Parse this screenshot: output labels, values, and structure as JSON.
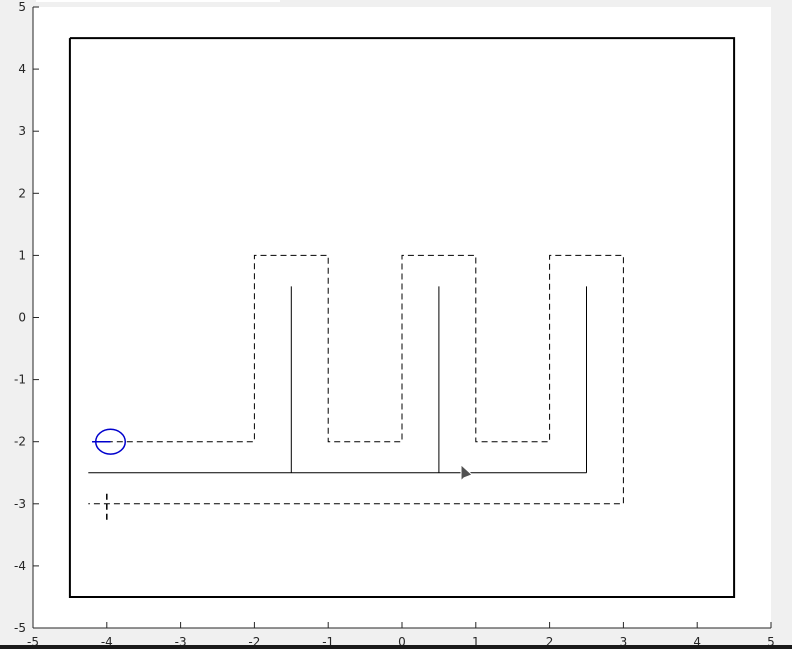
{
  "chart_data": {
    "type": "line",
    "title": "",
    "xlabel": "",
    "ylabel": "",
    "xlim": [
      -5,
      5
    ],
    "ylim": [
      -5,
      5
    ],
    "grid": false,
    "x_ticks": [
      "-5",
      "-4",
      "-3",
      "-2",
      "-1",
      "0",
      "1",
      "2",
      "3",
      "4",
      "5"
    ],
    "y_ticks": [
      "5",
      "4",
      "3",
      "2",
      "1",
      "0",
      "-1",
      "-2",
      "-3",
      "-4",
      "-5"
    ],
    "series": [
      {
        "style": "solid",
        "color": "#000000",
        "x": [
          -4.5,
          4.5,
          4.5,
          -4.5,
          -4.5
        ],
        "y": [
          4.5,
          4.5,
          -4.5,
          -4.5,
          4.5
        ]
      },
      {
        "style": "solid",
        "color": "#000000",
        "x": [
          -4.25,
          2.5
        ],
        "y": [
          -2.5,
          -2.5
        ]
      },
      {
        "style": "solid",
        "color": "#000000",
        "x": [
          -1.5,
          -1.5
        ],
        "y": [
          -2.5,
          0.5
        ]
      },
      {
        "style": "solid",
        "color": "#000000",
        "x": [
          0.5,
          0.5
        ],
        "y": [
          -2.5,
          0.5
        ]
      },
      {
        "style": "solid",
        "color": "#000000",
        "x": [
          2.5,
          2.5
        ],
        "y": [
          -2.5,
          0.5
        ]
      },
      {
        "style": "dashed",
        "color": "#000000",
        "x": [
          -4,
          -2,
          -2,
          -1,
          -1,
          0,
          0,
          1,
          1,
          2,
          2,
          3,
          3,
          -4.25
        ],
        "y": [
          -2,
          -2,
          1,
          1,
          -2,
          -2,
          1,
          1,
          -2,
          -2,
          1,
          1,
          -3,
          -3
        ]
      }
    ],
    "markers": [
      {
        "type": "circle",
        "color": "#0000cd",
        "x": -3.95,
        "y": -2,
        "r": 0.2
      },
      {
        "type": "heading-line",
        "color": "#0000cd",
        "x": [
          -4.2,
          -3.95
        ],
        "y": [
          -2,
          -2
        ]
      },
      {
        "type": "cross",
        "color": "#000000",
        "x": -4,
        "y": -3
      }
    ],
    "cursor": {
      "x": 0.8,
      "y": -2.5
    }
  }
}
